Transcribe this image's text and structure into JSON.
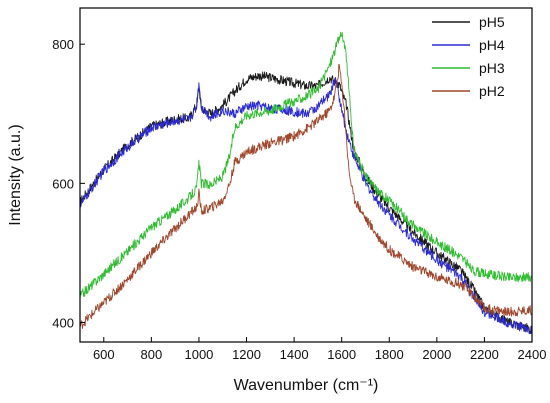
{
  "chart_data": {
    "type": "line",
    "xlabel": "Wavenumber (cm⁻¹)",
    "ylabel": "Intensity (a.u.)",
    "xlim": [
      500,
      2400
    ],
    "ylim": [
      372,
      852
    ],
    "x_ticks": [
      600,
      800,
      1000,
      1200,
      1400,
      1600,
      1800,
      2000,
      2200,
      2400
    ],
    "y_ticks": [
      400,
      600,
      800
    ],
    "grid": false,
    "legend_position": "top-right",
    "series": [
      {
        "name": "pH5",
        "color": "#1a1a1a",
        "x": [
          500,
          600,
          700,
          800,
          900,
          960,
          990,
          1000,
          1010,
          1050,
          1100,
          1150,
          1200,
          1250,
          1300,
          1350,
          1400,
          1450,
          1500,
          1550,
          1590,
          1620,
          1650,
          1700,
          1750,
          1800,
          1900,
          2000,
          2100,
          2150,
          2200,
          2300,
          2400
        ],
        "y": [
          573,
          620,
          655,
          682,
          692,
          694,
          712,
          740,
          708,
          700,
          712,
          732,
          750,
          755,
          752,
          748,
          744,
          740,
          740,
          752,
          742,
          712,
          650,
          610,
          585,
          565,
          530,
          500,
          475,
          450,
          420,
          400,
          390
        ]
      },
      {
        "name": "pH4",
        "color": "#2a2ad6",
        "x": [
          500,
          600,
          700,
          800,
          900,
          960,
          990,
          1000,
          1010,
          1050,
          1100,
          1150,
          1200,
          1250,
          1300,
          1350,
          1400,
          1450,
          1500,
          1550,
          1575,
          1600,
          1620,
          1650,
          1700,
          1750,
          1800,
          1900,
          2000,
          2100,
          2150,
          2200,
          2300,
          2400
        ],
        "y": [
          568,
          618,
          652,
          680,
          690,
          692,
          710,
          745,
          710,
          695,
          705,
          700,
          710,
          712,
          708,
          706,
          703,
          700,
          710,
          728,
          752,
          705,
          675,
          640,
          600,
          575,
          555,
          520,
          490,
          465,
          440,
          415,
          400,
          388
        ]
      },
      {
        "name": "pH3",
        "color": "#2fbe2f",
        "x": [
          500,
          600,
          700,
          800,
          900,
          960,
          990,
          1000,
          1010,
          1050,
          1080,
          1100,
          1130,
          1150,
          1200,
          1250,
          1300,
          1350,
          1400,
          1450,
          1500,
          1550,
          1580,
          1600,
          1620,
          1650,
          1700,
          1750,
          1800,
          1900,
          2000,
          2100,
          2150,
          2200,
          2300,
          2400
        ],
        "y": [
          438,
          470,
          502,
          537,
          562,
          580,
          592,
          630,
          600,
          598,
          605,
          610,
          640,
          680,
          698,
          702,
          705,
          712,
          718,
          725,
          735,
          770,
          800,
          818,
          780,
          650,
          610,
          590,
          575,
          540,
          515,
          495,
          475,
          470,
          465,
          465
        ]
      },
      {
        "name": "pH2",
        "color": "#a0462a",
        "x": [
          500,
          600,
          700,
          800,
          900,
          960,
          990,
          1000,
          1010,
          1050,
          1100,
          1130,
          1150,
          1200,
          1250,
          1300,
          1350,
          1400,
          1450,
          1500,
          1550,
          1570,
          1580,
          1590,
          1610,
          1630,
          1650,
          1700,
          1750,
          1800,
          1900,
          2000,
          2100,
          2150,
          2200,
          2300,
          2400
        ],
        "y": [
          395,
          428,
          462,
          500,
          535,
          556,
          565,
          585,
          560,
          565,
          575,
          600,
          630,
          645,
          652,
          658,
          662,
          668,
          678,
          690,
          705,
          725,
          745,
          770,
          710,
          620,
          580,
          550,
          525,
          505,
          480,
          465,
          455,
          440,
          420,
          415,
          418
        ]
      }
    ]
  }
}
